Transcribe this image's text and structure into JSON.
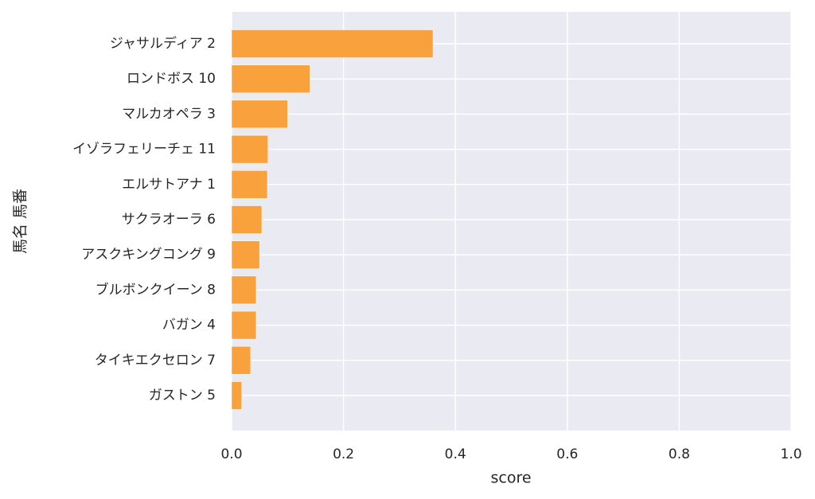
{
  "chart_data": {
    "type": "barh",
    "xlabel": "score",
    "ylabel": "馬名 馬番",
    "categories": [
      "ジャサルディア 2",
      "ロンドボス 10",
      "マルカオペラ 3",
      "イゾラフェリーチェ 11",
      "エルサトアナ 1",
      "サクラオーラ 6",
      "アスクキングコング 9",
      "ブルボンクイーン 8",
      "バガン 4",
      "タイキエクセロン 7",
      "ガストン 5"
    ],
    "values": [
      0.36,
      0.14,
      0.1,
      0.065,
      0.064,
      0.054,
      0.05,
      0.044,
      0.044,
      0.034,
      0.018
    ],
    "color": "#f99d33",
    "xlim": [
      0,
      1
    ],
    "xticks": [
      {
        "value": 0,
        "label": "0.0"
      },
      0.2,
      0.4,
      0.6,
      0.8,
      {
        "value": 1,
        "label": "1.0"
      }
    ],
    "grid": true
  }
}
